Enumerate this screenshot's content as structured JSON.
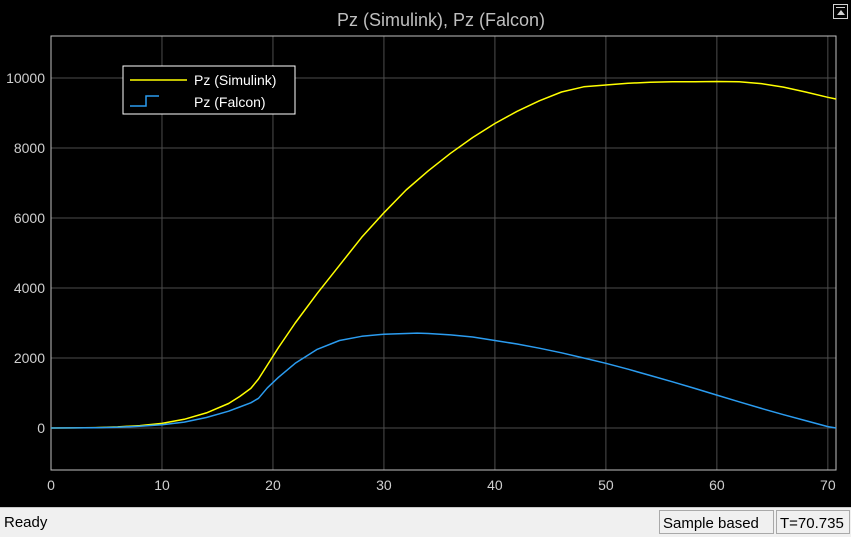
{
  "window": {
    "undock_icon": "undock-icon"
  },
  "status_bar": {
    "status_text": "Ready",
    "sample_mode": "Sample based",
    "time_readout": "T=70.735"
  },
  "chart_data": {
    "type": "line",
    "title": "Pz (Simulink), Pz (Falcon)",
    "xlabel": "",
    "ylabel": "",
    "xlim": [
      0,
      70.735
    ],
    "ylim": [
      -1200,
      11200
    ],
    "xticks": [
      0,
      10,
      20,
      30,
      40,
      50,
      60,
      70
    ],
    "yticks": [
      0,
      2000,
      4000,
      6000,
      8000,
      10000
    ],
    "grid": true,
    "legend_position": "top-left",
    "background": "#000000",
    "series": [
      {
        "name": "Pz (Simulink)",
        "color": "#ffff00",
        "x": [
          0,
          2,
          4,
          6,
          8,
          10,
          12,
          14,
          16,
          17,
          18,
          18.7,
          19.5,
          20.5,
          22,
          24,
          26,
          28,
          30,
          32,
          34,
          36,
          38,
          40,
          42,
          44,
          46,
          48,
          50,
          52,
          54,
          56,
          58,
          60,
          62,
          64,
          66,
          68,
          70,
          70.735
        ],
        "y": [
          0,
          3,
          10,
          30,
          70,
          130,
          250,
          430,
          700,
          900,
          1130,
          1400,
          1800,
          2300,
          3000,
          3850,
          4650,
          5450,
          6150,
          6800,
          7350,
          7850,
          8300,
          8700,
          9050,
          9350,
          9600,
          9750,
          9800,
          9850,
          9880,
          9890,
          9895,
          9900,
          9890,
          9840,
          9740,
          9600,
          9450,
          9400
        ]
      },
      {
        "name": "Pz (Falcon)",
        "color": "#2b9cf0",
        "x": [
          0,
          2,
          4,
          6,
          8,
          10,
          12,
          14,
          16,
          17,
          18,
          18.7,
          19.5,
          20.5,
          22,
          24,
          26,
          28,
          30,
          32,
          33,
          34,
          36,
          38,
          40,
          42,
          44,
          46,
          48,
          50,
          52,
          54,
          56,
          58,
          60,
          62,
          64,
          66,
          68,
          70,
          70.735
        ],
        "y": [
          0,
          2,
          8,
          22,
          50,
          95,
          170,
          300,
          480,
          600,
          720,
          850,
          1150,
          1450,
          1850,
          2250,
          2500,
          2620,
          2680,
          2700,
          2710,
          2700,
          2660,
          2600,
          2500,
          2400,
          2280,
          2150,
          2000,
          1850,
          1680,
          1500,
          1320,
          1130,
          940,
          750,
          560,
          380,
          210,
          40,
          0
        ]
      }
    ]
  }
}
